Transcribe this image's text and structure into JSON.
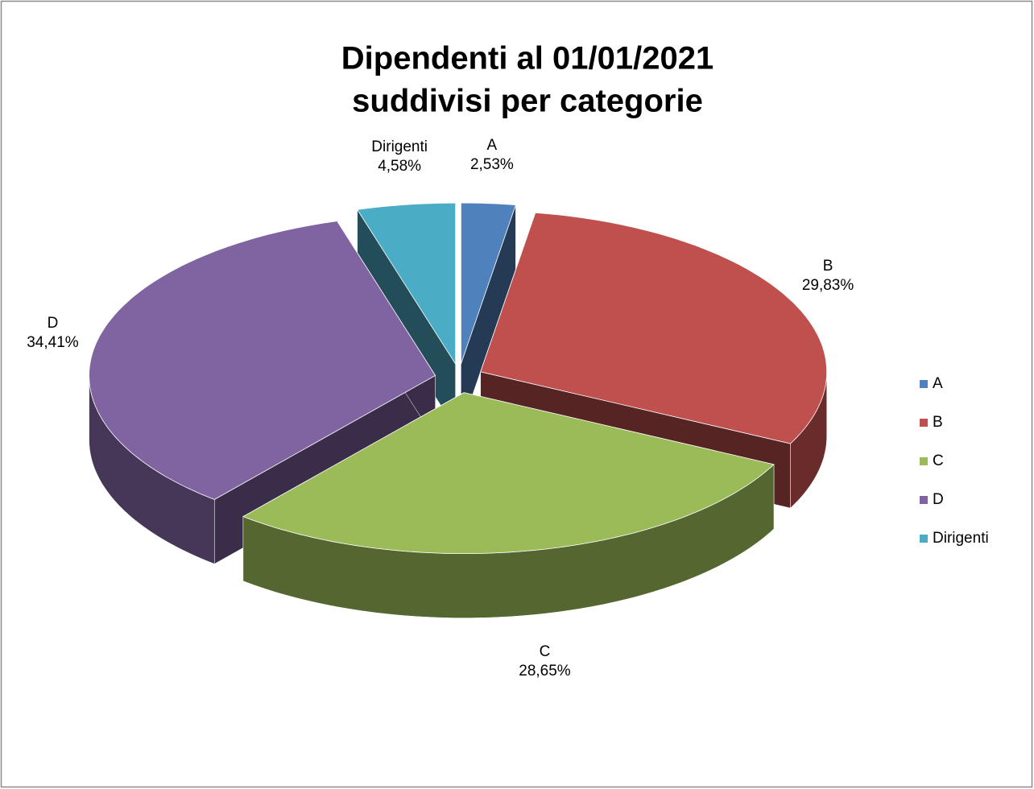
{
  "chart_data": {
    "type": "pie",
    "title": [
      "Dipendenti al 01/01/2021",
      "suddivisi per categorie"
    ],
    "categories": [
      "A",
      "B",
      "C",
      "D",
      "Dirigenti"
    ],
    "values": [
      2.53,
      29.83,
      28.65,
      34.41,
      4.58
    ],
    "value_labels": [
      "2,53%",
      "29,83%",
      "28,65%",
      "34,41%",
      "4,58%"
    ],
    "colors": [
      "#4f81bd",
      "#c0504d",
      "#9bbb59",
      "#8064a2",
      "#4bacc6"
    ],
    "legend": "right"
  }
}
